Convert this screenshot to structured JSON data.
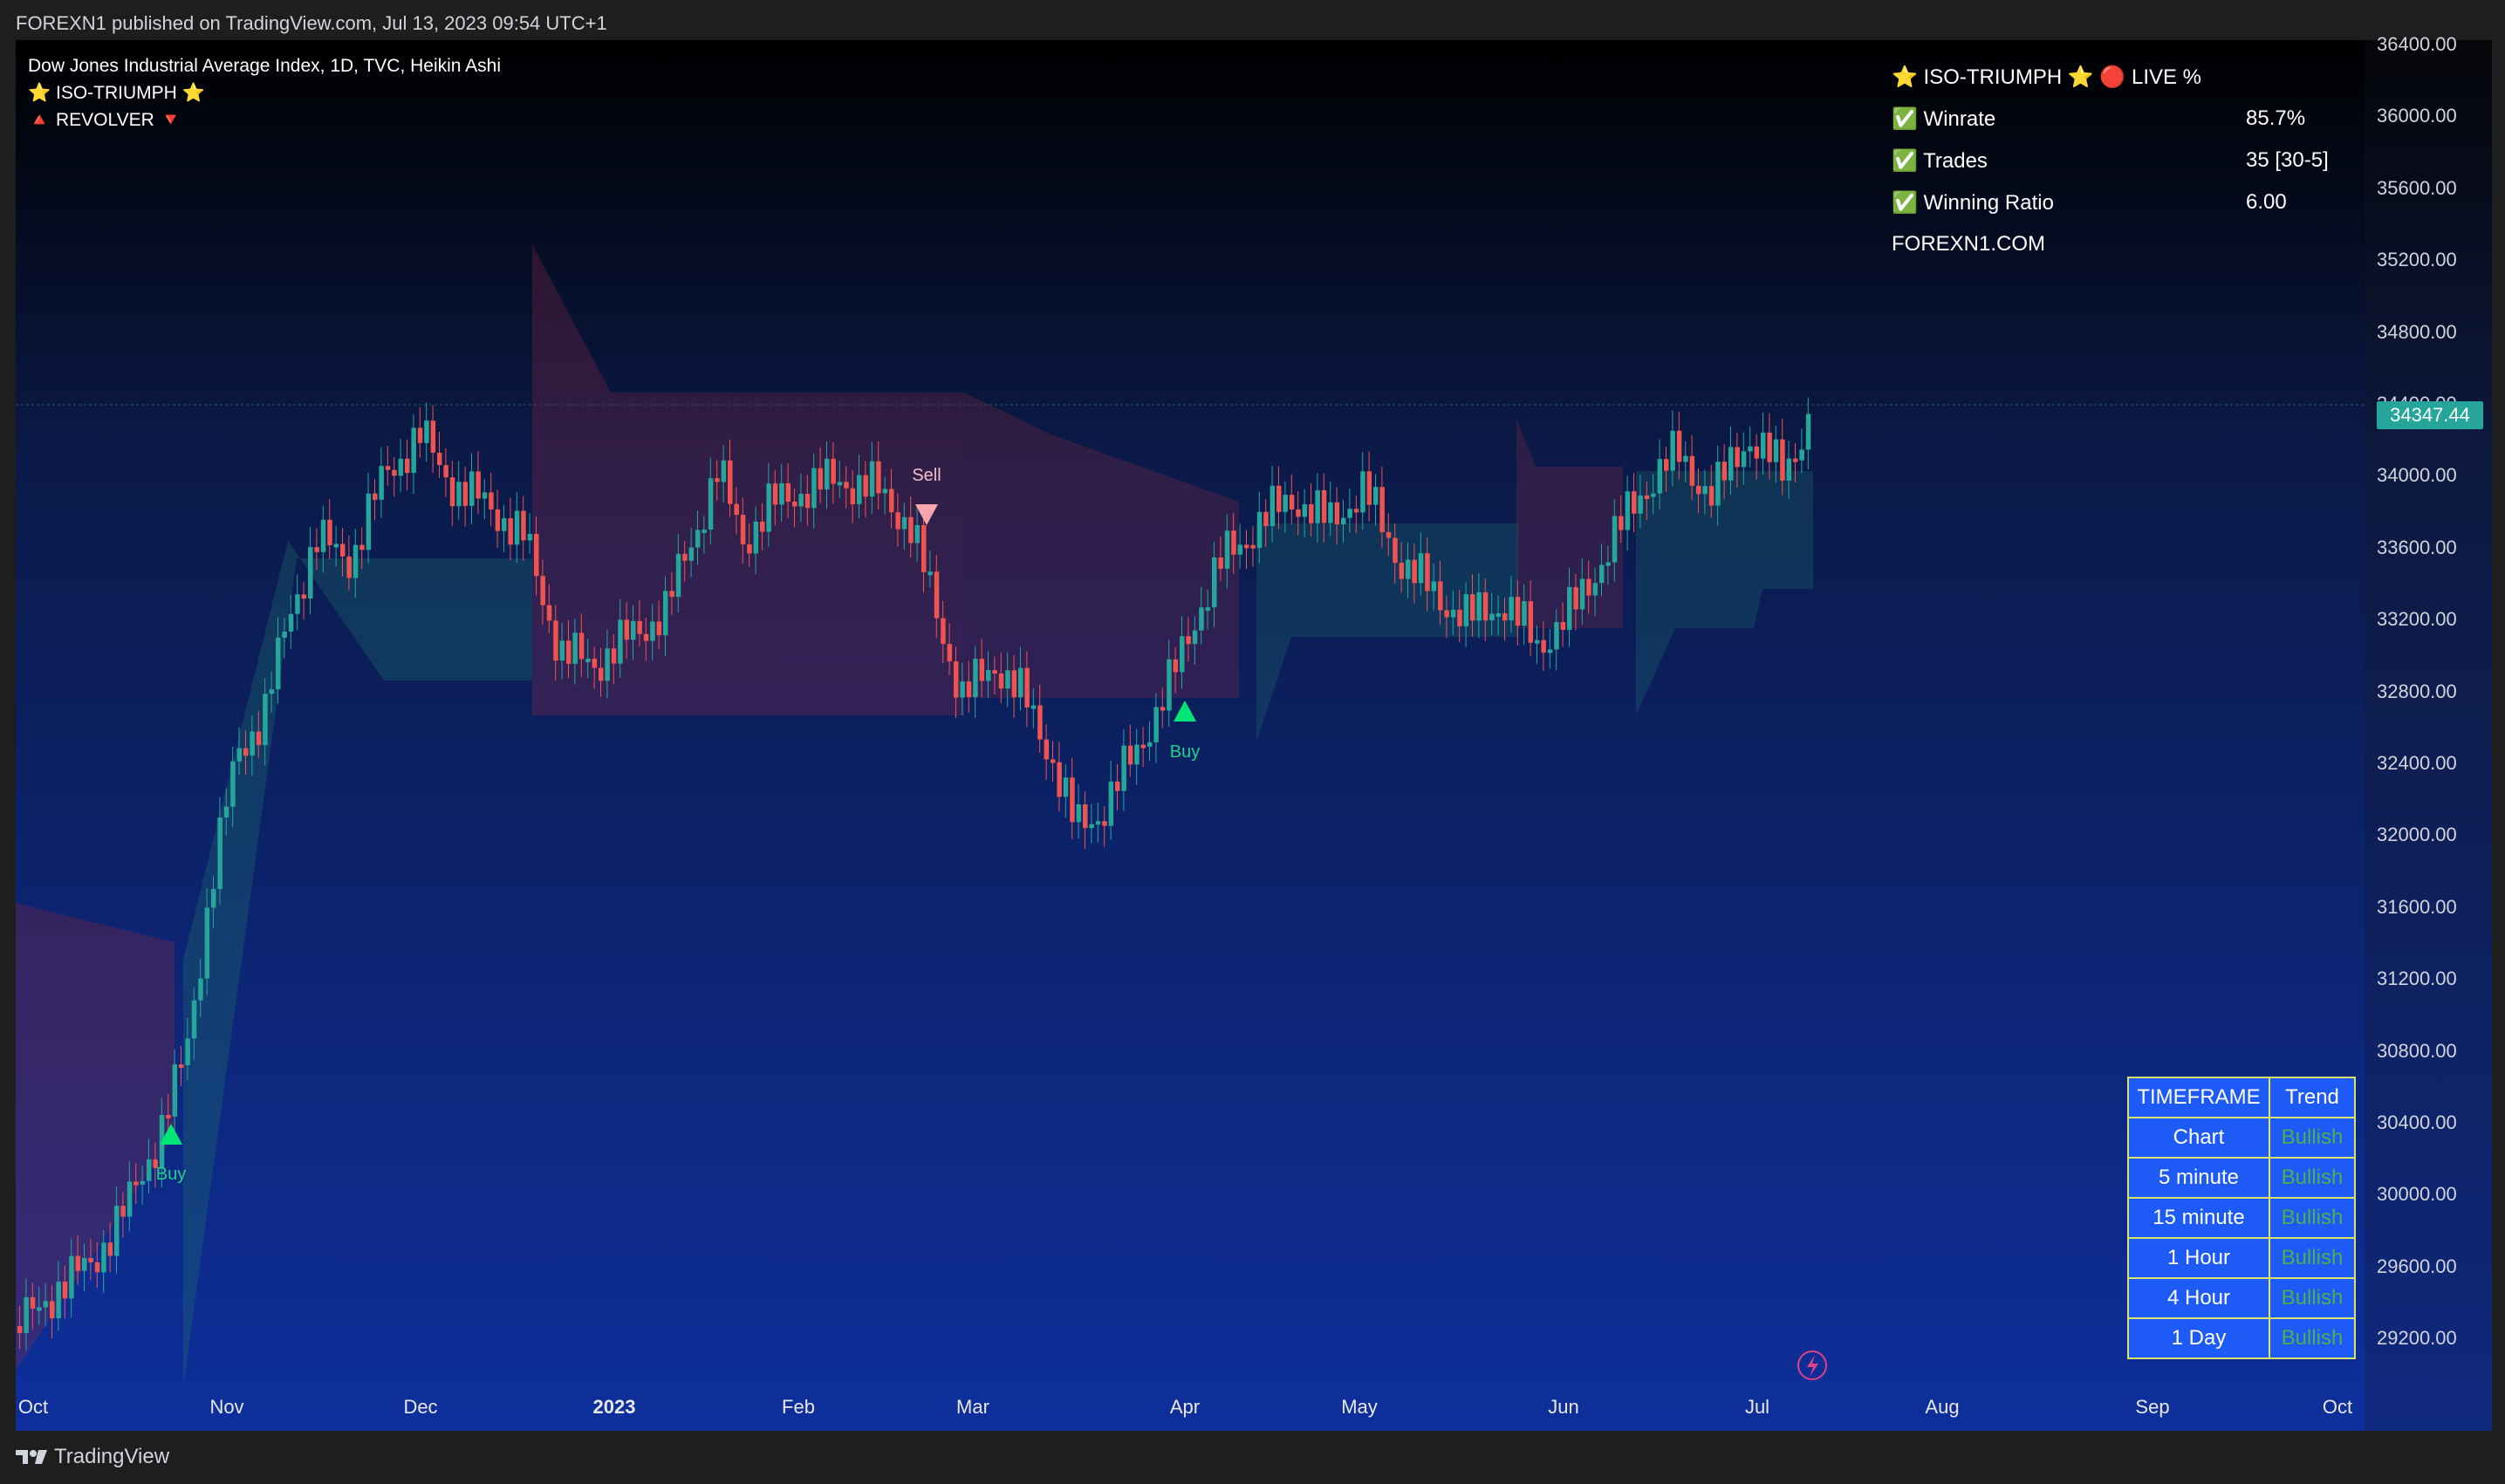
{
  "header": {
    "published": "FOREXN1 published on TradingView.com, Jul 13, 2023 09:54 UTC+1"
  },
  "legend": {
    "symbol": "Dow Jones Industrial Average Index, 1D, TVC, Heikin Ashi",
    "indicator1": "⭐ ISO-TRIUMPH ⭐",
    "indicator2": "🔺 REVOLVER 🔻"
  },
  "info_table": {
    "title": "⭐ ISO-TRIUMPH ⭐  🔴 LIVE %",
    "rows": [
      {
        "label": "✅ Winrate",
        "value": "85.7%"
      },
      {
        "label": "✅ Trades",
        "value": "35 [30-5]"
      },
      {
        "label": "✅ Winning Ratio",
        "value": "6.00"
      }
    ],
    "footer": "FOREXN1.COM"
  },
  "trend_table": {
    "header": {
      "tf": "TIMEFRAME",
      "trend": "Trend"
    },
    "rows": [
      {
        "tf": "Chart",
        "trend": "Bullish"
      },
      {
        "tf": "5 minute",
        "trend": "Bullish"
      },
      {
        "tf": "15 minute",
        "trend": "Bullish"
      },
      {
        "tf": "1 Hour",
        "trend": "Bullish"
      },
      {
        "tf": "4 Hour",
        "trend": "Bullish"
      },
      {
        "tf": "1 Day",
        "trend": "Bullish"
      }
    ]
  },
  "signals": {
    "buy": "Buy",
    "sell": "Sell"
  },
  "price_axis": [
    "36400.00",
    "36000.00",
    "35600.00",
    "35200.00",
    "34800.00",
    "34400.00",
    "34000.00",
    "33600.00",
    "33200.00",
    "32800.00",
    "32400.00",
    "32000.00",
    "31600.00",
    "31200.00",
    "30800.00",
    "30400.00",
    "30000.00",
    "29600.00",
    "29200.00"
  ],
  "last_price": "34347.44",
  "time_axis": [
    "Oct",
    "Nov",
    "Dec",
    "2023",
    "Feb",
    "Mar",
    "Apr",
    "May",
    "Jun",
    "Jul",
    "Aug",
    "Sep",
    "Oct"
  ],
  "footer": {
    "brand": "TradingView"
  },
  "colors": {
    "bull": "#26a69a",
    "bear": "#ef5350",
    "buy_signal": "#00e676",
    "sell_signal": "#f8a5b0",
    "trend_bg": "#1e5bf6",
    "trend_border": "#d9e36a"
  }
}
